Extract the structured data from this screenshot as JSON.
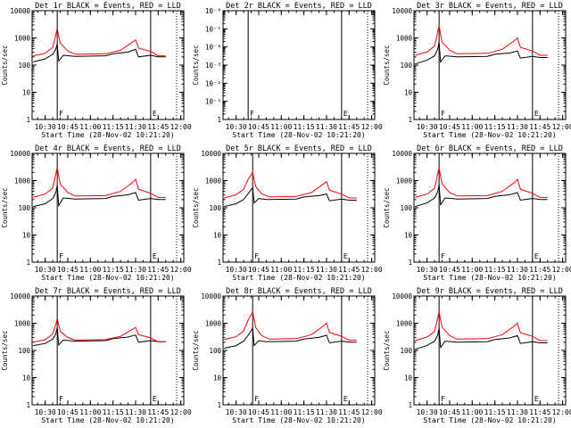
{
  "chart_data": {
    "type": "line",
    "xlabel": "Start Time (28-Nov-02 10:21:20)",
    "ylabel": "Counts/sec",
    "x_tick_labels": [
      "10:30",
      "10:45",
      "11:00",
      "11:15",
      "11:30",
      "11:45",
      "12:00"
    ],
    "colors": {
      "events": "#000000",
      "lld": "#ff0000"
    },
    "panels": [
      {
        "title": "Det 1r BLACK = Events, RED = LLD",
        "scale": "log",
        "ylim": [
          1,
          10000
        ],
        "y_tick_labels": [
          "1",
          "10",
          "100",
          "1000",
          "10000"
        ],
        "vlines": [
          "10:38",
          "11:40"
        ],
        "marker_labels": [
          "F",
          "E"
        ],
        "series": [
          {
            "color": "black",
            "x": [
              "10:22",
              "10:30",
              "10:35",
              "10:37",
              "10:38",
              "10:39",
              "10:42",
              "10:50",
              "11:10",
              "11:15",
              "11:25",
              "11:30",
              "11:32",
              "11:40",
              "11:45",
              "11:50"
            ],
            "y": [
              130,
              170,
              250,
              380,
              600,
              140,
              230,
              210,
              220,
              260,
              300,
              380,
              200,
              230,
              200,
              200
            ]
          },
          {
            "color": "red",
            "x": [
              "10:22",
              "10:30",
              "10:35",
              "10:37",
              "10:38",
              "10:40",
              "10:45",
              "10:50",
              "11:10",
              "11:20",
              "11:28",
              "11:30",
              "11:32",
              "11:40",
              "11:45",
              "11:50"
            ],
            "y": [
              220,
              270,
              450,
              1300,
              2200,
              650,
              330,
              250,
              260,
              350,
              700,
              850,
              420,
              320,
              220,
              220
            ]
          }
        ]
      },
      {
        "title": "Det 2r BLACK = Events, RED = LLD",
        "scale": "log",
        "ylim": [
          1,
          1e-06
        ],
        "y_tick_labels": [
          "1",
          "10⁻¹",
          "10⁻²",
          "10⁻³",
          "10⁻⁴",
          "10⁻⁵",
          "10⁻⁶"
        ],
        "vlines": [
          "10:38",
          "11:40"
        ],
        "marker_labels": [
          "F",
          "E"
        ],
        "series": []
      },
      {
        "title": "Det 3r BLACK = Events, RED = LLD",
        "scale": "log",
        "ylim": [
          1,
          10000
        ],
        "y_tick_labels": [
          "1",
          "10",
          "100",
          "1000",
          "10000"
        ],
        "vlines": [
          "10:38",
          "11:40"
        ],
        "marker_labels": [
          "F",
          "E"
        ],
        "series": [
          {
            "color": "black",
            "x": [
              "10:22",
              "10:30",
              "10:35",
              "10:37",
              "10:38",
              "10:39",
              "10:42",
              "10:50",
              "11:10",
              "11:15",
              "11:25",
              "11:30",
              "11:32",
              "11:40",
              "11:45",
              "11:50"
            ],
            "y": [
              110,
              150,
              220,
              380,
              700,
              130,
              220,
              200,
              210,
              250,
              280,
              330,
              180,
              210,
              190,
              190
            ]
          },
          {
            "color": "red",
            "x": [
              "10:22",
              "10:30",
              "10:35",
              "10:37",
              "10:38",
              "10:40",
              "10:45",
              "10:50",
              "11:10",
              "11:20",
              "11:28",
              "11:30",
              "11:32",
              "11:40",
              "11:45",
              "11:50"
            ],
            "y": [
              230,
              300,
              500,
              1600,
              2800,
              700,
              350,
              260,
              270,
              380,
              800,
              1000,
              450,
              330,
              230,
              230
            ]
          }
        ]
      },
      {
        "title": "Det 4r BLACK = Events, RED = LLD",
        "scale": "log",
        "ylim": [
          1,
          10000
        ],
        "y_tick_labels": [
          "1",
          "10",
          "100",
          "1000",
          "10000"
        ],
        "vlines": [
          "10:38",
          "11:40"
        ],
        "marker_labels": [
          "F",
          "E"
        ],
        "series": [
          {
            "color": "black",
            "x": [
              "10:22",
              "10:30",
              "10:35",
              "10:37",
              "10:38",
              "10:39",
              "10:42",
              "10:50",
              "11:10",
              "11:15",
              "11:25",
              "11:30",
              "11:32",
              "11:40",
              "11:45",
              "11:50"
            ],
            "y": [
              110,
              140,
              220,
              360,
              650,
              120,
              230,
              210,
              220,
              260,
              300,
              360,
              190,
              220,
              200,
              200
            ]
          },
          {
            "color": "red",
            "x": [
              "10:22",
              "10:30",
              "10:35",
              "10:37",
              "10:38",
              "10:40",
              "10:45",
              "10:50",
              "11:10",
              "11:20",
              "11:28",
              "11:30",
              "11:32",
              "11:40",
              "11:45",
              "11:50"
            ],
            "y": [
              240,
              320,
              520,
              1700,
              3000,
              750,
              360,
              270,
              280,
              400,
              850,
              1100,
              480,
              340,
              240,
              240
            ]
          }
        ]
      },
      {
        "title": "Det 5r BLACK = Events, RED = LLD",
        "scale": "log",
        "ylim": [
          1,
          10000
        ],
        "y_tick_labels": [
          "1",
          "10",
          "100",
          "1000",
          "10000"
        ],
        "vlines": [
          "10:41",
          "11:40"
        ],
        "marker_labels": [
          "F",
          "E"
        ],
        "series": [
          {
            "color": "black",
            "x": [
              "10:22",
              "10:30",
              "10:35",
              "10:38",
              "10:41",
              "10:42",
              "10:45",
              "10:50",
              "11:10",
              "11:15",
              "11:25",
              "11:30",
              "11:32",
              "11:40",
              "11:45",
              "11:50"
            ],
            "y": [
              110,
              140,
              200,
              330,
              550,
              150,
              220,
              200,
              210,
              250,
              280,
              320,
              180,
              210,
              190,
              190
            ]
          },
          {
            "color": "red",
            "x": [
              "10:22",
              "10:30",
              "10:35",
              "10:38",
              "10:41",
              "10:43",
              "10:47",
              "10:52",
              "11:10",
              "11:20",
              "11:28",
              "11:30",
              "11:32",
              "11:40",
              "11:45",
              "11:50"
            ],
            "y": [
              230,
              300,
              480,
              1100,
              2000,
              600,
              330,
              250,
              260,
              360,
              750,
              900,
              440,
              320,
              230,
              230
            ]
          }
        ]
      },
      {
        "title": "Det 6r BLACK = Events, RED = LLD",
        "scale": "log",
        "ylim": [
          1,
          10000
        ],
        "y_tick_labels": [
          "1",
          "10",
          "100",
          "1000",
          "10000"
        ],
        "vlines": [
          "10:38",
          "11:40"
        ],
        "marker_labels": [
          "F",
          "E"
        ],
        "series": [
          {
            "color": "black",
            "x": [
              "10:22",
              "10:30",
              "10:35",
              "10:37",
              "10:38",
              "10:39",
              "10:42",
              "10:50",
              "11:10",
              "11:15",
              "11:25",
              "11:30",
              "11:32",
              "11:40",
              "11:45",
              "11:50"
            ],
            "y": [
              110,
              150,
              230,
              380,
              700,
              130,
              230,
              210,
              220,
              260,
              300,
              360,
              190,
              220,
              200,
              200
            ]
          },
          {
            "color": "red",
            "x": [
              "10:22",
              "10:30",
              "10:35",
              "10:37",
              "10:38",
              "10:40",
              "10:45",
              "10:50",
              "11:10",
              "11:20",
              "11:28",
              "11:30",
              "11:32",
              "11:40",
              "11:45",
              "11:50"
            ],
            "y": [
              240,
              320,
              520,
              1700,
              3000,
              750,
              360,
              270,
              280,
              400,
              850,
              1100,
              480,
              340,
              240,
              240
            ]
          }
        ]
      },
      {
        "title": "Det 7r BLACK = Events, RED = LLD",
        "scale": "log",
        "ylim": [
          1,
          10000
        ],
        "y_tick_labels": [
          "1",
          "10",
          "100",
          "1000",
          "10000"
        ],
        "vlines": [
          "10:38",
          "11:40"
        ],
        "marker_labels": [
          "F",
          "E"
        ],
        "series": [
          {
            "color": "black",
            "x": [
              "10:22",
              "10:30",
              "10:35",
              "10:37",
              "10:38",
              "10:39",
              "10:42",
              "10:50",
              "11:10",
              "11:15",
              "11:25",
              "11:30",
              "11:32",
              "11:40",
              "11:45",
              "11:50"
            ],
            "y": [
              150,
              180,
              260,
              400,
              700,
              160,
              240,
              220,
              230,
              270,
              310,
              370,
              200,
              230,
              210,
              210
            ]
          },
          {
            "color": "red",
            "x": [
              "10:22",
              "10:30",
              "10:35",
              "10:37",
              "10:38",
              "10:40",
              "10:45",
              "10:50",
              "11:10",
              "11:20",
              "11:28",
              "11:30",
              "11:32",
              "11:40",
              "11:45",
              "11:50"
            ],
            "y": [
              200,
              250,
              400,
              900,
              1500,
              500,
              300,
              240,
              250,
              330,
              600,
              700,
              380,
              290,
              210,
              210
            ]
          }
        ]
      },
      {
        "title": "Det 8r BLACK = Events, RED = LLD",
        "scale": "log",
        "ylim": [
          1,
          10000
        ],
        "y_tick_labels": [
          "1",
          "10",
          "100",
          "1000",
          "10000"
        ],
        "vlines": [
          "10:41",
          "11:40"
        ],
        "marker_labels": [
          "F",
          "E"
        ],
        "series": [
          {
            "color": "black",
            "x": [
              "10:22",
              "10:30",
              "10:35",
              "10:38",
              "10:41",
              "10:42",
              "10:45",
              "10:50",
              "11:10",
              "11:15",
              "11:25",
              "11:30",
              "11:32",
              "11:40",
              "11:45",
              "11:50"
            ],
            "y": [
              120,
              150,
              220,
              360,
              650,
              150,
              230,
              210,
              220,
              260,
              300,
              360,
              190,
              220,
              200,
              200
            ]
          },
          {
            "color": "red",
            "x": [
              "10:22",
              "10:30",
              "10:35",
              "10:38",
              "10:41",
              "10:43",
              "10:47",
              "10:52",
              "11:10",
              "11:20",
              "11:28",
              "11:30",
              "11:32",
              "11:40",
              "11:45",
              "11:50"
            ],
            "y": [
              250,
              320,
              520,
              1300,
              2600,
              700,
              350,
              260,
              270,
              380,
              800,
              1000,
              460,
              330,
              240,
              240
            ]
          }
        ]
      },
      {
        "title": "Det 9r BLACK = Events, RED = LLD",
        "scale": "log",
        "ylim": [
          1,
          10000
        ],
        "y_tick_labels": [
          "1",
          "10",
          "100",
          "1000",
          "10000"
        ],
        "vlines": [
          "10:38",
          "11:40"
        ],
        "marker_labels": [
          "F",
          "E"
        ],
        "series": [
          {
            "color": "black",
            "x": [
              "10:22",
              "10:30",
              "10:35",
              "10:37",
              "10:38",
              "10:39",
              "10:42",
              "10:50",
              "11:10",
              "11:15",
              "11:25",
              "11:30",
              "11:32",
              "11:40",
              "11:45",
              "11:50"
            ],
            "y": [
              110,
              150,
              220,
              360,
              650,
              130,
              220,
              200,
              210,
              250,
              290,
              350,
              180,
              210,
              190,
              190
            ]
          },
          {
            "color": "red",
            "x": [
              "10:22",
              "10:30",
              "10:35",
              "10:37",
              "10:38",
              "10:40",
              "10:45",
              "10:50",
              "11:10",
              "11:20",
              "11:28",
              "11:30",
              "11:32",
              "11:40",
              "11:45",
              "11:50"
            ],
            "y": [
              230,
              310,
              500,
              1500,
              2700,
              700,
              350,
              260,
              270,
              380,
              800,
              1000,
              450,
              330,
              230,
              230
            ]
          }
        ]
      }
    ]
  }
}
